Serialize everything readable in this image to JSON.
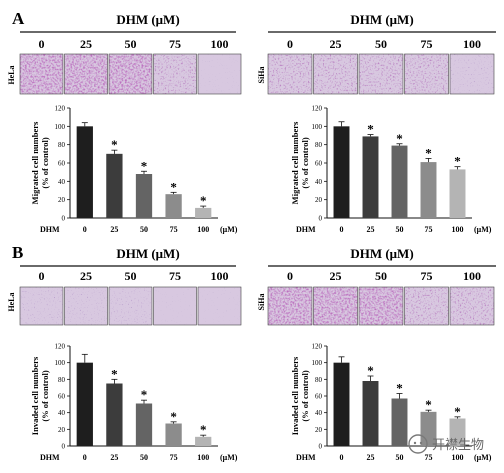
{
  "panel_labels": {
    "a": "A",
    "b": "B"
  },
  "dose_header": "DHM (μM)",
  "doses": [
    "0",
    "25",
    "50",
    "75",
    "100"
  ],
  "cell_lines": {
    "left": "HeLa",
    "right": "SiHa"
  },
  "x_axis_prefix": "DHM",
  "x_axis_unit": "(μM)",
  "significance_mark": "*",
  "watermark": "开襟生物",
  "colors": {
    "bar_0": "#1e1e1e",
    "bar_25": "#3c3c3c",
    "bar_50": "#646464",
    "bar_75": "#8c8c8c",
    "bar_100": "#b4b4b4",
    "stain_dark": "#8a2a8a",
    "stain_light": "#d8c8e0"
  },
  "chart_data": [
    {
      "id": "A-HeLa",
      "type": "bar",
      "categories": [
        "0",
        "25",
        "50",
        "75",
        "100"
      ],
      "values": [
        100,
        70,
        48,
        26,
        11
      ],
      "errors": [
        4,
        4,
        3,
        2,
        2
      ],
      "significant": [
        false,
        true,
        true,
        true,
        true
      ],
      "ylabel": "Migrated cell numbers (% of control)",
      "ylim": [
        0,
        120
      ],
      "yticks": [
        0,
        20,
        40,
        60,
        80,
        100,
        120
      ]
    },
    {
      "id": "A-SiHa",
      "type": "bar",
      "categories": [
        "0",
        "25",
        "50",
        "75",
        "100"
      ],
      "values": [
        100,
        89,
        79,
        61,
        53
      ],
      "errors": [
        5,
        2,
        2,
        4,
        3
      ],
      "significant": [
        false,
        true,
        true,
        true,
        true
      ],
      "ylabel": "Migrated cell numbers (% of control)",
      "ylim": [
        0,
        120
      ],
      "yticks": [
        0,
        20,
        40,
        60,
        80,
        100,
        120
      ]
    },
    {
      "id": "B-HeLa",
      "type": "bar",
      "categories": [
        "0",
        "25",
        "50",
        "75",
        "100"
      ],
      "values": [
        100,
        75,
        51,
        27,
        11
      ],
      "errors": [
        10,
        5,
        4,
        2,
        2
      ],
      "significant": [
        false,
        true,
        true,
        true,
        true
      ],
      "ylabel": "Invaded cell numbers (% of control)",
      "ylim": [
        0,
        120
      ],
      "yticks": [
        0,
        20,
        40,
        60,
        80,
        100,
        120
      ]
    },
    {
      "id": "B-SiHa",
      "type": "bar",
      "categories": [
        "0",
        "25",
        "50",
        "75",
        "100"
      ],
      "values": [
        100,
        78,
        57,
        41,
        33
      ],
      "errors": [
        7,
        6,
        6,
        2,
        2
      ],
      "significant": [
        false,
        true,
        true,
        true,
        true
      ],
      "ylabel": "Invaded cell numbers (% of control)",
      "ylim": [
        0,
        120
      ],
      "yticks": [
        0,
        20,
        40,
        60,
        80,
        100,
        120
      ]
    }
  ]
}
